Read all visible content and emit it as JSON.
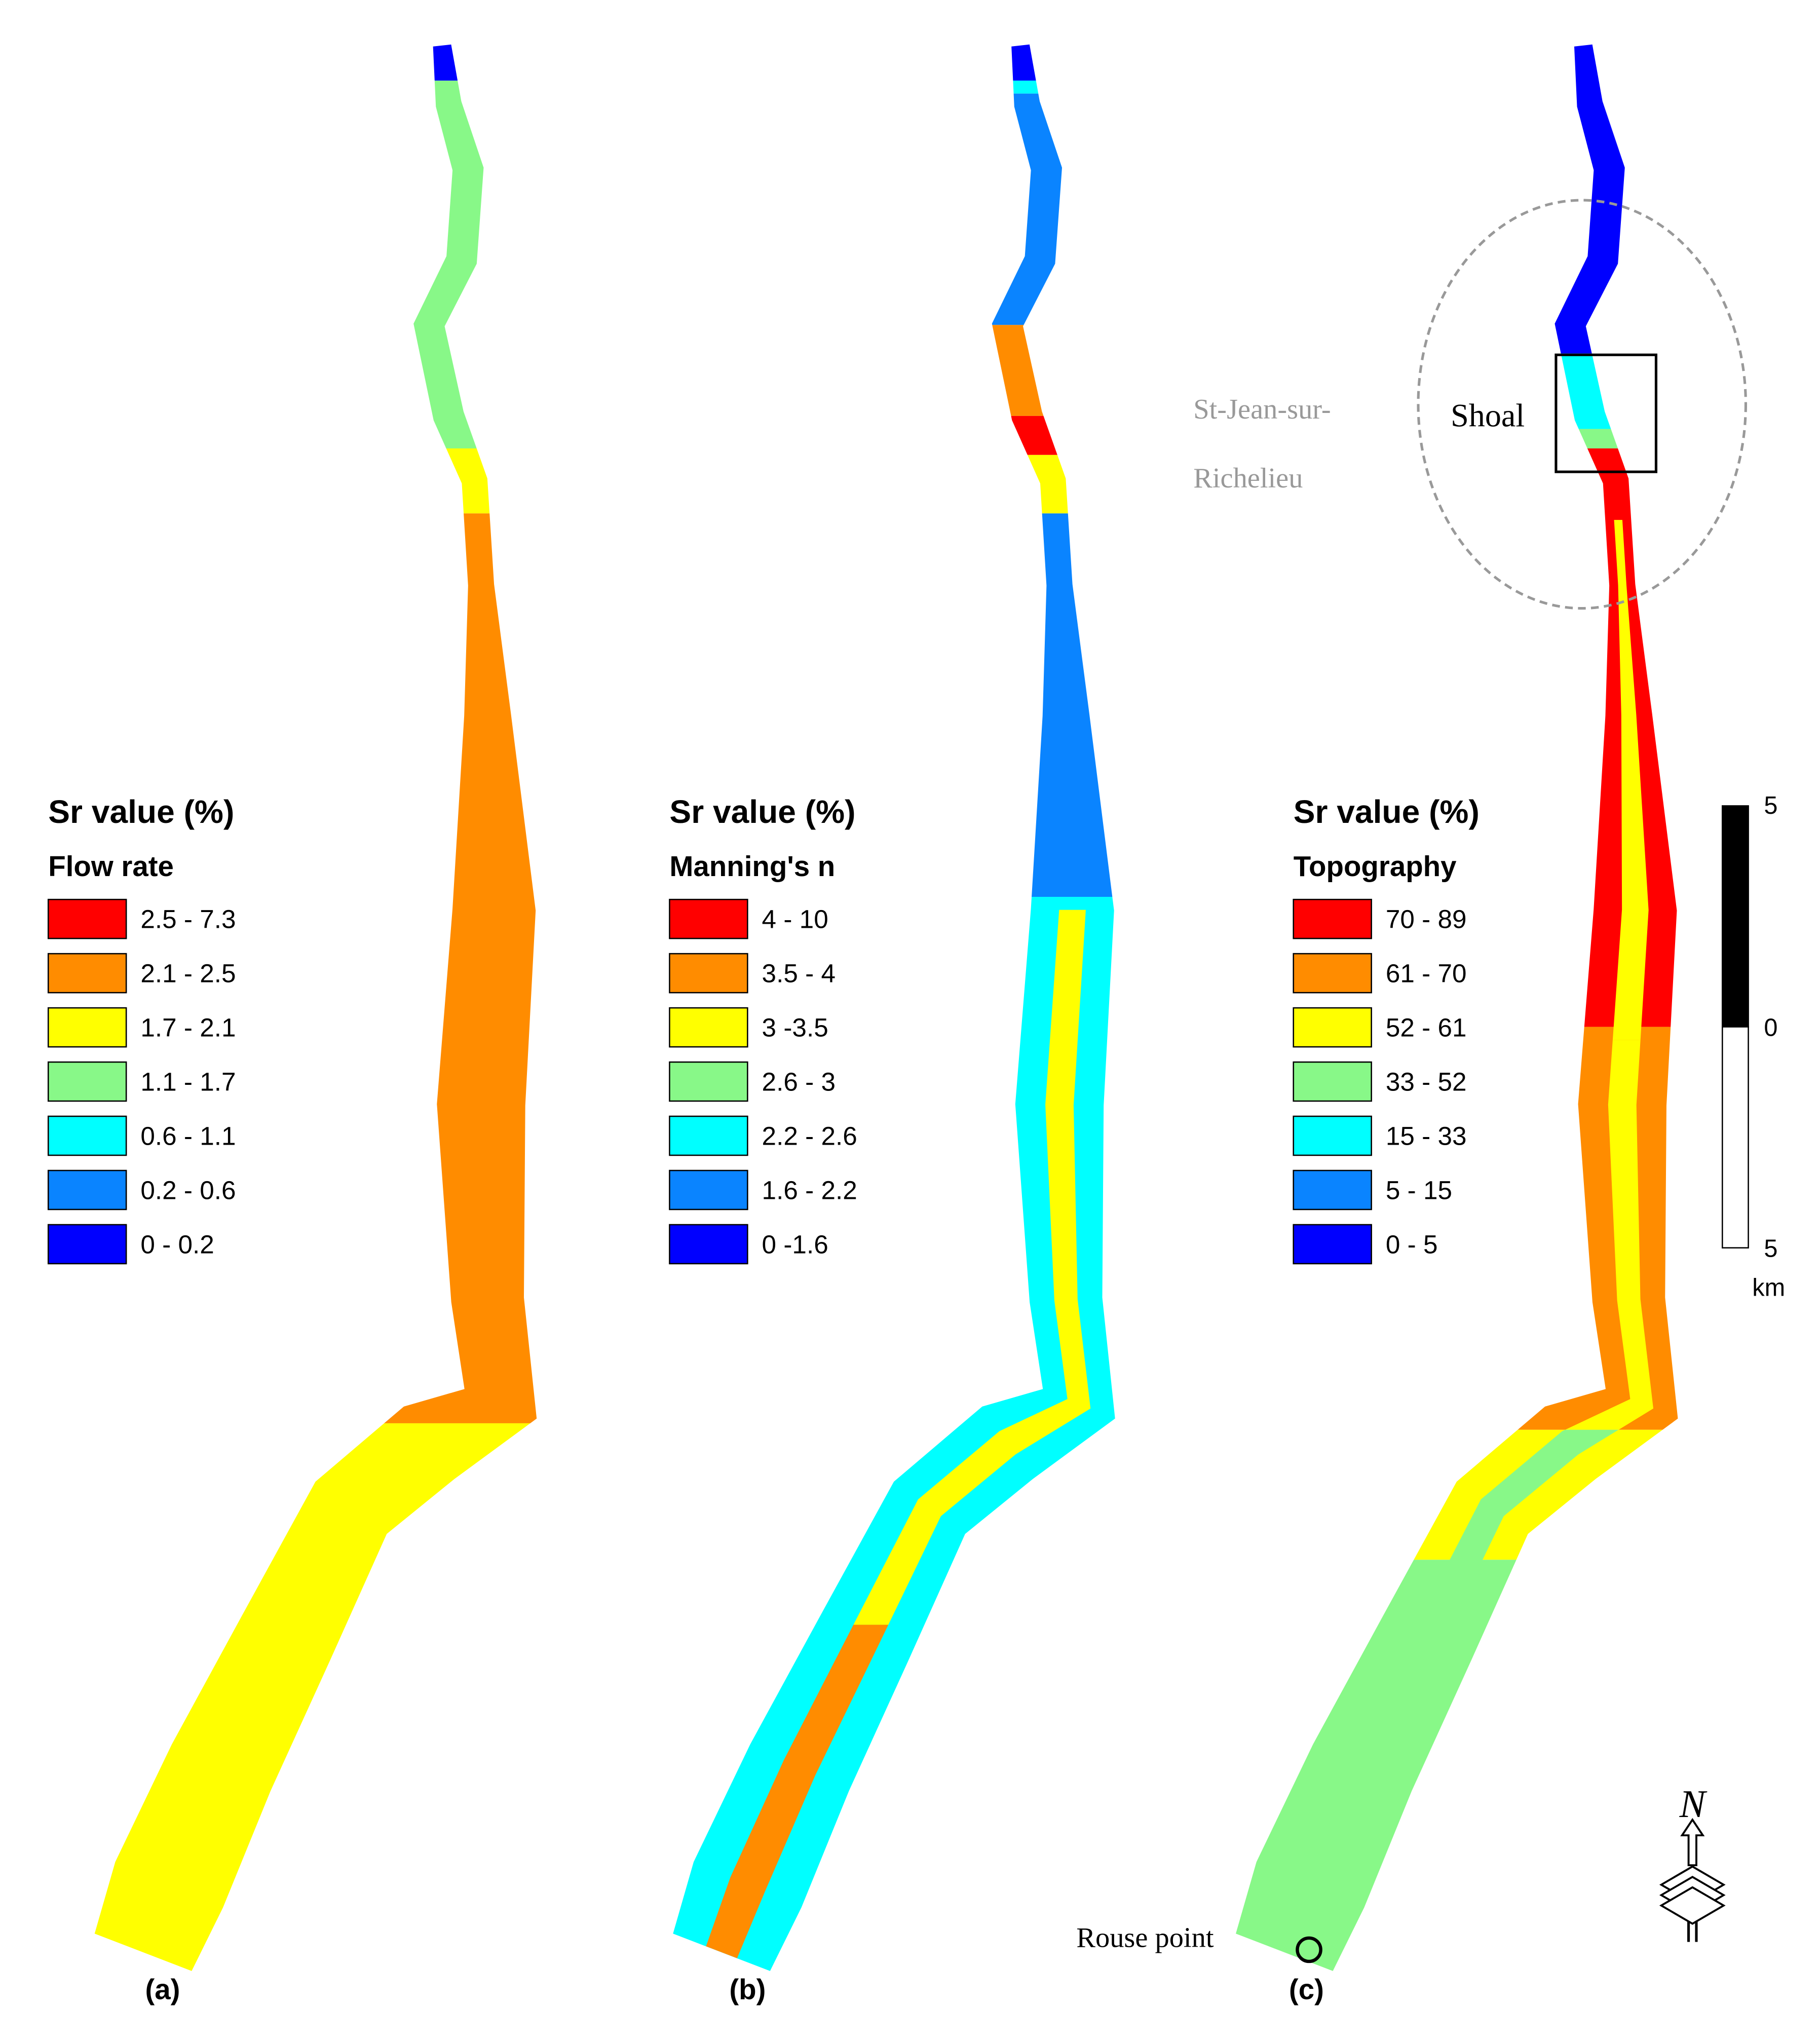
{
  "panels": [
    {
      "label": "(a)",
      "legend": {
        "title": "Sr value (%)",
        "subtitle": "Flow rate",
        "items": [
          {
            "label": "2.5 - 7.3",
            "color": "#ff0000"
          },
          {
            "label": "2.1 - 2.5",
            "color": "#ff8c00"
          },
          {
            "label": "1.7 - 2.1",
            "color": "#ffff00"
          },
          {
            "label": "1.1 - 1.7",
            "color": "#88f888"
          },
          {
            "label": "0.6 - 1.1",
            "color": "#00ffff"
          },
          {
            "label": "0.2 - 0.6",
            "color": "#0a84ff"
          },
          {
            "label": "0 - 0.2",
            "color": "#0000ff"
          }
        ]
      }
    },
    {
      "label": "(b)",
      "legend": {
        "title": "Sr value (%)",
        "subtitle": "Manning's n",
        "items": [
          {
            "label": "4 - 10",
            "color": "#ff0000"
          },
          {
            "label": "3.5 - 4",
            "color": "#ff8c00"
          },
          {
            "label": "3 -3.5",
            "color": "#ffff00"
          },
          {
            "label": "2.6 - 3",
            "color": "#88f888"
          },
          {
            "label": "2.2 - 2.6",
            "color": "#00ffff"
          },
          {
            "label": "1.6 - 2.2",
            "color": "#0a84ff"
          },
          {
            "label": "0 -1.6",
            "color": "#0000ff"
          }
        ]
      }
    },
    {
      "label": "(c)",
      "legend": {
        "title": "Sr value (%)",
        "subtitle": "Topography",
        "items": [
          {
            "label": "70 - 89",
            "color": "#ff0000"
          },
          {
            "label": "61 - 70",
            "color": "#ff8c00"
          },
          {
            "label": "52 - 61",
            "color": "#ffff00"
          },
          {
            "label": "33 - 52",
            "color": "#88f888"
          },
          {
            "label": "15 - 33",
            "color": "#00ffff"
          },
          {
            "label": "5 - 15",
            "color": "#0a84ff"
          },
          {
            "label": "0 - 5",
            "color": "#0000ff"
          }
        ]
      }
    }
  ],
  "annotations": {
    "city": [
      "St-Jean-sur-",
      "Richelieu"
    ],
    "shoal": "Shoal",
    "rouse": "Rouse point"
  },
  "scale_bar": {
    "top": "5",
    "middle": "0",
    "bottom": "5",
    "unit": "km"
  },
  "north": "N"
}
